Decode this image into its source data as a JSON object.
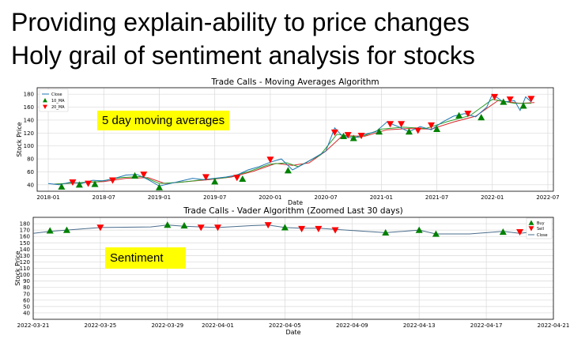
{
  "slide": {
    "heading_line1": "Providing explain-ability to price changes",
    "heading_line2": "Holy grail of sentiment analysis for stocks"
  },
  "callouts": {
    "ma": "5 day moving averages",
    "sentiment": "Sentiment"
  },
  "colors": {
    "close": "#1f77b4",
    "ma10": "#2ca02c",
    "ma20": "#d62728",
    "buy": "#008000",
    "sell": "#ff0000",
    "vader_close": "#4a6d8c"
  },
  "chart_data": [
    {
      "type": "line",
      "title": "Trade Calls - Moving Averages Algorithm",
      "xlabel": "Date",
      "ylabel": "Stock Price",
      "ylim": [
        30,
        190
      ],
      "xlim": [
        2017.9,
        2022.55
      ],
      "grid": true,
      "legend": "top-left",
      "x_ticks": [
        2018.0,
        2018.5,
        2019.0,
        2019.5,
        2020.0,
        2020.5,
        2021.0,
        2021.5,
        2022.0,
        2022.5
      ],
      "x_tick_labels": [
        "2018-01",
        "2018-07",
        "2019-01",
        "2019-07",
        "2020-01",
        "2020-07",
        "2021-01",
        "2021-07",
        "2022-01",
        "2022-07"
      ],
      "y_ticks": [
        40,
        60,
        80,
        100,
        120,
        140,
        160,
        180
      ],
      "legend_entries": [
        "Close",
        "10_MA",
        "20_MA"
      ],
      "close_points": [
        [
          2018.0,
          42
        ],
        [
          2018.1,
          40
        ],
        [
          2018.2,
          44
        ],
        [
          2018.3,
          42
        ],
        [
          2018.4,
          47
        ],
        [
          2018.5,
          46
        ],
        [
          2018.6,
          50
        ],
        [
          2018.7,
          55
        ],
        [
          2018.8,
          56
        ],
        [
          2018.9,
          48
        ],
        [
          2019.0,
          38
        ],
        [
          2019.1,
          42
        ],
        [
          2019.2,
          46
        ],
        [
          2019.3,
          50
        ],
        [
          2019.4,
          48
        ],
        [
          2019.5,
          50
        ],
        [
          2019.6,
          52
        ],
        [
          2019.7,
          55
        ],
        [
          2019.8,
          63
        ],
        [
          2019.9,
          68
        ],
        [
          2020.0,
          75
        ],
        [
          2020.1,
          80
        ],
        [
          2020.2,
          63
        ],
        [
          2020.3,
          72
        ],
        [
          2020.4,
          82
        ],
        [
          2020.5,
          92
        ],
        [
          2020.58,
          128
        ],
        [
          2020.65,
          115
        ],
        [
          2020.75,
          112
        ],
        [
          2020.85,
          118
        ],
        [
          2020.95,
          122
        ],
        [
          2021.05,
          137
        ],
        [
          2021.15,
          130
        ],
        [
          2021.25,
          122
        ],
        [
          2021.35,
          130
        ],
        [
          2021.45,
          125
        ],
        [
          2021.55,
          137
        ],
        [
          2021.65,
          146
        ],
        [
          2021.75,
          150
        ],
        [
          2021.85,
          145
        ],
        [
          2021.95,
          160
        ],
        [
          2022.0,
          180
        ],
        [
          2022.1,
          168
        ],
        [
          2022.2,
          170
        ],
        [
          2022.25,
          155
        ],
        [
          2022.3,
          176
        ],
        [
          2022.35,
          168
        ]
      ],
      "ma10_points": [
        [
          2018.05,
          41
        ],
        [
          2018.25,
          43
        ],
        [
          2018.45,
          45
        ],
        [
          2018.65,
          51
        ],
        [
          2018.85,
          53
        ],
        [
          2019.0,
          42
        ],
        [
          2019.2,
          44
        ],
        [
          2019.4,
          48
        ],
        [
          2019.6,
          51
        ],
        [
          2019.8,
          60
        ],
        [
          2020.0,
          72
        ],
        [
          2020.15,
          74
        ],
        [
          2020.25,
          68
        ],
        [
          2020.45,
          86
        ],
        [
          2020.6,
          118
        ],
        [
          2020.8,
          113
        ],
        [
          2021.0,
          126
        ],
        [
          2021.2,
          129
        ],
        [
          2021.4,
          127
        ],
        [
          2021.6,
          138
        ],
        [
          2021.8,
          147
        ],
        [
          2022.0,
          172
        ],
        [
          2022.2,
          166
        ],
        [
          2022.35,
          166
        ]
      ],
      "ma20_points": [
        [
          2018.05,
          41
        ],
        [
          2018.3,
          43
        ],
        [
          2018.5,
          45
        ],
        [
          2018.7,
          50
        ],
        [
          2018.9,
          51
        ],
        [
          2019.05,
          42
        ],
        [
          2019.25,
          45
        ],
        [
          2019.45,
          48
        ],
        [
          2019.65,
          52
        ],
        [
          2019.85,
          61
        ],
        [
          2020.05,
          73
        ],
        [
          2020.2,
          70
        ],
        [
          2020.35,
          74
        ],
        [
          2020.5,
          92
        ],
        [
          2020.65,
          116
        ],
        [
          2020.85,
          115
        ],
        [
          2021.05,
          125
        ],
        [
          2021.25,
          127
        ],
        [
          2021.45,
          126
        ],
        [
          2021.65,
          137
        ],
        [
          2021.85,
          146
        ],
        [
          2022.05,
          170
        ],
        [
          2022.25,
          166
        ],
        [
          2022.38,
          167
        ]
      ],
      "buy_points": [
        [
          2018.12,
          37
        ],
        [
          2018.28,
          40
        ],
        [
          2018.42,
          41
        ],
        [
          2018.78,
          54
        ],
        [
          2019.0,
          36
        ],
        [
          2019.5,
          45
        ],
        [
          2019.75,
          49
        ],
        [
          2020.16,
          62
        ],
        [
          2020.66,
          115
        ],
        [
          2020.75,
          112
        ],
        [
          2020.98,
          122
        ],
        [
          2021.25,
          122
        ],
        [
          2021.5,
          126
        ],
        [
          2021.7,
          147
        ],
        [
          2021.9,
          144
        ],
        [
          2022.1,
          168
        ],
        [
          2022.28,
          162
        ]
      ],
      "sell_points": [
        [
          2018.22,
          44
        ],
        [
          2018.36,
          42
        ],
        [
          2018.58,
          47
        ],
        [
          2018.86,
          56
        ],
        [
          2019.42,
          52
        ],
        [
          2019.7,
          51
        ],
        [
          2020.0,
          79
        ],
        [
          2020.58,
          121
        ],
        [
          2020.7,
          117
        ],
        [
          2020.82,
          116
        ],
        [
          2021.08,
          134
        ],
        [
          2021.18,
          134
        ],
        [
          2021.33,
          124
        ],
        [
          2021.45,
          132
        ],
        [
          2021.78,
          150
        ],
        [
          2022.02,
          176
        ],
        [
          2022.16,
          172
        ],
        [
          2022.35,
          173
        ]
      ]
    },
    {
      "type": "line",
      "title": "Trade Calls - Vader Algorithm (Zoomed Last 30 days)",
      "xlabel": "Date",
      "ylabel": "Stock Price",
      "ylim": [
        30,
        190
      ],
      "xlim": [
        0,
        31
      ],
      "grid": true,
      "legend": "top-right",
      "x_ticks": [
        0,
        4,
        8,
        11,
        15,
        19,
        23,
        27,
        31
      ],
      "x_tick_labels": [
        "2022-03-21",
        "2022-03-25",
        "2022-03-29",
        "2022-04-01",
        "2022-04-05",
        "2022-04-09",
        "2022-04-13",
        "2022-04-17",
        "2022-04-21"
      ],
      "y_ticks": [
        40,
        50,
        60,
        70,
        80,
        90,
        100,
        110,
        120,
        130,
        140,
        150,
        160,
        170,
        180
      ],
      "legend_entries": [
        "Buy",
        "Sell",
        "Close"
      ],
      "close_points": [
        [
          0,
          165
        ],
        [
          1,
          168
        ],
        [
          2,
          170
        ],
        [
          4,
          174
        ],
        [
          7,
          175
        ],
        [
          8,
          178
        ],
        [
          9,
          176
        ],
        [
          10,
          175
        ],
        [
          11,
          174
        ],
        [
          13,
          177
        ],
        [
          14,
          178
        ],
        [
          15,
          174
        ],
        [
          16,
          173
        ],
        [
          17,
          173
        ],
        [
          18,
          171
        ],
        [
          21,
          166
        ],
        [
          23,
          170
        ],
        [
          24,
          164
        ],
        [
          26,
          164
        ],
        [
          27,
          166
        ],
        [
          28,
          168
        ],
        [
          29,
          165
        ],
        [
          30,
          168
        ]
      ],
      "buy_points": [
        [
          1,
          169
        ],
        [
          2,
          170
        ],
        [
          8,
          178
        ],
        [
          9,
          177
        ],
        [
          15,
          174
        ],
        [
          21,
          166
        ],
        [
          23,
          170
        ],
        [
          24,
          164
        ],
        [
          28,
          167
        ],
        [
          30,
          179
        ]
      ],
      "sell_points": [
        [
          4,
          174
        ],
        [
          10,
          174
        ],
        [
          11,
          174
        ],
        [
          14,
          178
        ],
        [
          16,
          172
        ],
        [
          17,
          172
        ],
        [
          18,
          170
        ],
        [
          29,
          167
        ],
        [
          30,
          172
        ]
      ]
    }
  ]
}
